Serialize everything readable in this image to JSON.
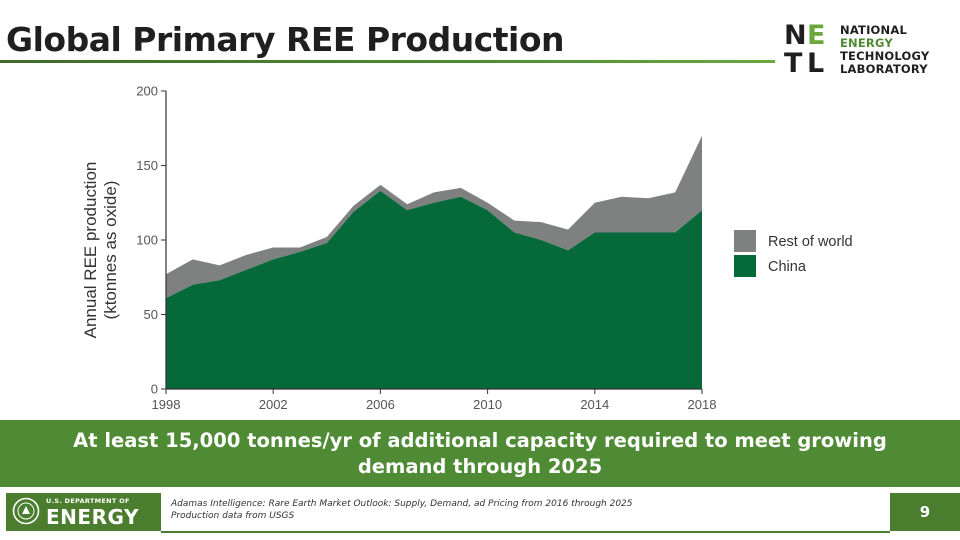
{
  "title": "Global Primary REE Production",
  "logo": {
    "letters": [
      "N",
      "E",
      "T",
      "L"
    ],
    "lines": [
      "NATIONAL",
      "ENERGY",
      "TECHNOLOGY",
      "LABORATORY"
    ]
  },
  "chart_data": {
    "type": "area",
    "stacked": true,
    "title": "",
    "ylabel_lines": [
      "Annual REE production",
      "(ktonnes as oxide)"
    ],
    "xlabel": "",
    "x": [
      1998,
      1999,
      2000,
      2001,
      2002,
      2003,
      2004,
      2005,
      2006,
      2007,
      2008,
      2009,
      2010,
      2011,
      2012,
      2013,
      2014,
      2015,
      2016,
      2017,
      2018
    ],
    "xticks": [
      "1998",
      "2002",
      "2006",
      "2010",
      "2014",
      "2018"
    ],
    "yticks": [
      "0",
      "50",
      "100",
      "150",
      "200"
    ],
    "ylim": [
      0,
      200
    ],
    "xlim": [
      1998,
      2018
    ],
    "series": [
      {
        "name": "China",
        "color": "#05693a",
        "values": [
          61,
          70,
          73,
          80,
          87,
          92,
          98,
          119,
          133,
          120,
          125,
          129,
          120,
          105,
          100,
          93,
          105,
          105,
          105,
          105,
          120
        ]
      },
      {
        "name": "Rest of world",
        "color": "#7f8080",
        "values": [
          16,
          17,
          10,
          10,
          8,
          3,
          4,
          4,
          4,
          4,
          7,
          6,
          5,
          8,
          12,
          14,
          20,
          24,
          23,
          27,
          50
        ]
      }
    ],
    "legend": {
      "placement": "right",
      "order": [
        "Rest of world",
        "China"
      ]
    }
  },
  "banner": {
    "text": "At least 15,000 tonnes/yr of additional capacity required to meet growing demand through 2025"
  },
  "footer": {
    "doe_dept": "U.S. DEPARTMENT OF",
    "doe_energy": "ENERGY",
    "citations": [
      "Adamas Intelligence: Rare Earth Market Outlook: Supply, Demand, ad Pricing from 2016 through 2025",
      "Production data from USGS"
    ],
    "page_number": "9"
  },
  "colors": {
    "accent_green": "#4f8a34",
    "china_green": "#05693a",
    "row_gray": "#7f8080"
  }
}
